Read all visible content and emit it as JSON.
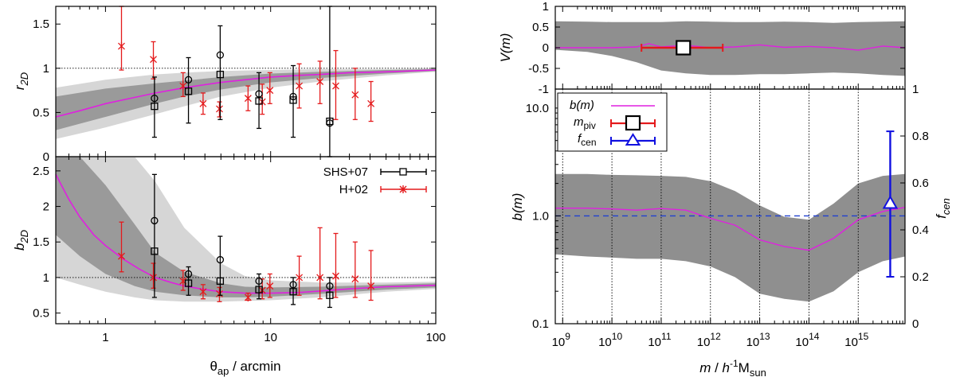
{
  "colors": {
    "band_outer": "#d6d6d6",
    "band_inner": "#9a9a9a",
    "band_dark": "#8f8f8f",
    "model": "#e020e0",
    "h02": "#e41a1c",
    "shs": "#000000",
    "fcen": "#1010e0",
    "dash_blue": "#2040d0"
  },
  "chart_data": [
    {
      "id": "r2d",
      "type": "scatter",
      "ylabel_main": "r",
      "ylabel_sub": "2D",
      "xscale": "log",
      "xlim": [
        0.5,
        100
      ],
      "ylim": [
        0,
        1.7
      ],
      "yticks": [
        "0",
        "0.5",
        "1",
        "1.5"
      ],
      "yticks_values": [
        0,
        0.5,
        1,
        1.5
      ],
      "reference_line": 1,
      "model": {
        "x": [
          0.5,
          0.7,
          1,
          1.5,
          2,
          3,
          5,
          7,
          10,
          15,
          20,
          30,
          50,
          70,
          100
        ],
        "y": [
          0.45,
          0.52,
          0.6,
          0.67,
          0.72,
          0.78,
          0.84,
          0.87,
          0.9,
          0.92,
          0.93,
          0.95,
          0.96,
          0.97,
          0.98
        ]
      },
      "band_inner": {
        "x": [
          0.5,
          1,
          2,
          3,
          5,
          10,
          20,
          50,
          100
        ],
        "lo": [
          0.3,
          0.45,
          0.6,
          0.68,
          0.76,
          0.84,
          0.89,
          0.94,
          0.97
        ],
        "hi": [
          0.68,
          0.77,
          0.83,
          0.86,
          0.9,
          0.94,
          0.96,
          0.98,
          0.99
        ]
      },
      "band_outer": {
        "x": [
          0.5,
          1,
          2,
          3,
          5,
          10,
          20,
          50,
          100
        ],
        "lo": [
          0.2,
          0.33,
          0.48,
          0.57,
          0.68,
          0.78,
          0.85,
          0.92,
          0.96
        ],
        "hi": [
          0.78,
          0.87,
          0.93,
          0.95,
          0.97,
          0.98,
          0.99,
          0.99,
          1.0
        ]
      },
      "h02": {
        "x": [
          1.25,
          1.95,
          2.95,
          3.9,
          4.9,
          7.3,
          8.9,
          9.9,
          14.9,
          19.9,
          24.8,
          32.5,
          40.5
        ],
        "y": [
          1.25,
          1.1,
          0.8,
          0.6,
          0.54,
          0.66,
          0.62,
          0.75,
          0.8,
          0.85,
          0.8,
          0.7,
          0.6
        ],
        "lo": [
          0.98,
          0.88,
          0.68,
          0.48,
          0.45,
          0.52,
          0.48,
          0.6,
          0.55,
          0.6,
          0.42,
          0.42,
          0.4
        ],
        "hi": [
          1.7,
          1.3,
          0.95,
          0.72,
          0.62,
          0.8,
          0.82,
          0.95,
          1.05,
          1.08,
          1.2,
          1.0,
          0.85
        ]
      },
      "shs_sq": {
        "x": [
          1.98,
          3.18,
          4.95,
          8.5,
          13.7,
          22.8
        ],
        "y": [
          0.57,
          0.74,
          0.93,
          0.63,
          0.64,
          0.4
        ],
        "lo": [
          0.22,
          0.38,
          0.42,
          0.32,
          0.22,
          0.0
        ],
        "hi": [
          0.9,
          1.12,
          1.48,
          0.95,
          1.03,
          1.7
        ]
      },
      "shs_circ": {
        "x": [
          1.98,
          3.18,
          4.95,
          8.5,
          13.7,
          22.8
        ],
        "y": [
          0.66,
          0.87,
          1.15,
          0.71,
          0.68,
          0.38
        ]
      }
    },
    {
      "id": "b2d",
      "type": "scatter",
      "xlabel_main": "θ",
      "xlabel_sub": "ap",
      "xlabel_rest": " / arcmin",
      "ylabel_main": "b",
      "ylabel_sub": "2D",
      "xscale": "log",
      "xlim": [
        0.5,
        100
      ],
      "ylim": [
        0.35,
        2.7
      ],
      "xticks": [
        "1",
        "10",
        "100"
      ],
      "xticks_values": [
        1,
        10,
        100
      ],
      "yticks": [
        "0.5",
        "1",
        "1.5",
        "2",
        "2.5"
      ],
      "yticks_values": [
        0.5,
        1,
        1.5,
        2,
        2.5
      ],
      "reference_line": 1,
      "legend": [
        {
          "label": "SHS+07",
          "series": "shs"
        },
        {
          "label": "H+02",
          "series": "h02"
        }
      ],
      "model": {
        "x": [
          0.5,
          0.6,
          0.7,
          0.85,
          1,
          1.3,
          1.6,
          2,
          2.5,
          3,
          4,
          5,
          7,
          10,
          15,
          20,
          30,
          50,
          100
        ],
        "y": [
          2.45,
          2.1,
          1.85,
          1.6,
          1.45,
          1.25,
          1.12,
          1.0,
          0.93,
          0.88,
          0.83,
          0.8,
          0.78,
          0.78,
          0.79,
          0.81,
          0.84,
          0.87,
          0.89
        ]
      },
      "band_inner": {
        "x": [
          0.5,
          0.7,
          1,
          1.5,
          2,
          3,
          5,
          7,
          10,
          20,
          50,
          100
        ],
        "lo": [
          1.6,
          1.3,
          1.05,
          0.88,
          0.8,
          0.75,
          0.72,
          0.72,
          0.73,
          0.77,
          0.83,
          0.86
        ],
        "hi": [
          2.7,
          2.7,
          2.3,
          1.75,
          1.35,
          1.08,
          0.92,
          0.87,
          0.86,
          0.87,
          0.9,
          0.92
        ]
      },
      "band_outer": {
        "x": [
          0.5,
          0.7,
          1,
          1.5,
          2,
          3,
          5,
          7,
          10,
          20,
          50,
          100
        ],
        "lo": [
          1.0,
          0.9,
          0.8,
          0.72,
          0.68,
          0.66,
          0.66,
          0.67,
          0.68,
          0.72,
          0.8,
          0.84
        ],
        "hi": [
          2.7,
          2.7,
          2.7,
          2.7,
          2.35,
          1.7,
          1.2,
          1.02,
          0.96,
          0.93,
          0.93,
          0.94
        ]
      },
      "h02": {
        "x": [
          1.25,
          1.95,
          2.95,
          3.9,
          4.9,
          7.3,
          8.9,
          9.9,
          14.9,
          19.9,
          24.8,
          32.5,
          40.5
        ],
        "y": [
          1.3,
          1.0,
          0.95,
          0.8,
          0.77,
          0.72,
          0.82,
          0.88,
          1.0,
          1.0,
          1.02,
          0.98,
          0.88
        ],
        "lo": [
          1.08,
          0.85,
          0.82,
          0.7,
          0.66,
          0.68,
          0.7,
          0.72,
          0.75,
          0.7,
          0.72,
          0.72,
          0.68
        ],
        "hi": [
          1.78,
          1.2,
          1.1,
          0.9,
          0.86,
          0.78,
          0.98,
          1.05,
          1.3,
          1.7,
          1.62,
          1.5,
          1.38
        ]
      },
      "shs_sq": {
        "x": [
          1.98,
          3.18,
          4.95,
          8.5,
          13.7,
          22.8
        ],
        "y": [
          1.37,
          0.92,
          0.95,
          0.83,
          0.8,
          0.75
        ],
        "lo": [
          0.72,
          0.75,
          0.75,
          0.7,
          0.62,
          0.58
        ],
        "hi": [
          2.45,
          1.15,
          1.58,
          1.05,
          1.0,
          1.0
        ]
      },
      "shs_circ": {
        "x": [
          1.98,
          3.18,
          4.95,
          8.5,
          13.7,
          22.8
        ],
        "y": [
          1.8,
          1.05,
          1.25,
          0.95,
          0.9,
          0.88
        ]
      }
    },
    {
      "id": "vm",
      "type": "line",
      "ylabel": "V(m)",
      "xscale": "log",
      "xlim": [
        8.85,
        15.95
      ],
      "ylim": [
        -1,
        1
      ],
      "yticks": [
        "-1",
        "-0.5",
        "0",
        "0.5",
        "1"
      ],
      "yticks_values": [
        -1,
        -0.5,
        0,
        0.5,
        1
      ],
      "band": {
        "logm": [
          8.85,
          9.5,
          10,
          10.5,
          11,
          11.5,
          12,
          12.5,
          13,
          13.5,
          14,
          14.5,
          15,
          15.5,
          15.95
        ],
        "lo": [
          -0.05,
          -0.1,
          -0.2,
          -0.35,
          -0.55,
          -0.62,
          -0.66,
          -0.66,
          -0.64,
          -0.64,
          -0.62,
          -0.6,
          -0.62,
          -0.66,
          -0.68
        ],
        "hi": [
          0.64,
          0.63,
          0.62,
          0.62,
          0.62,
          0.64,
          0.63,
          0.62,
          0.62,
          0.63,
          0.62,
          0.6,
          0.62,
          0.63,
          0.64
        ]
      },
      "line": {
        "logm": [
          8.85,
          9.5,
          10,
          10.5,
          10.75,
          11,
          11.5,
          12,
          12.5,
          13,
          13.5,
          14,
          14.5,
          15,
          15.5,
          15.95
        ],
        "y": [
          0.0,
          0.0,
          0.0,
          0.02,
          0.1,
          0.02,
          0.06,
          0.0,
          0.02,
          0.07,
          0.01,
          0.03,
          0.0,
          -0.06,
          0.04,
          0.0
        ]
      },
      "pivot": {
        "logm": 11.45,
        "y": 0,
        "lo": 10.6,
        "hi": 12.25
      }
    },
    {
      "id": "bm",
      "type": "line",
      "xlabel_main": "m",
      "xlabel_rest": " / ",
      "xlabel_h": "h",
      "xlabel_sup": "-1",
      "xlabel_M": "M",
      "xlabel_sub": "sun",
      "ylabel": "b(m)",
      "y2label_main": "f",
      "y2label_sub": "cen",
      "xscale": "log",
      "yscale": "log",
      "xlim": [
        8.85,
        15.95
      ],
      "ylim": [
        0.1,
        15
      ],
      "xticks": [
        "9",
        "10",
        "11",
        "12",
        "13",
        "14",
        "15"
      ],
      "xticks_values": [
        9,
        10,
        11,
        12,
        13,
        14,
        15
      ],
      "xtick_base": "10",
      "yticks": [
        "0.1",
        "1.0",
        "10.0"
      ],
      "yticks_values": [
        0.1,
        1,
        10
      ],
      "y2ticks": [
        "0",
        "0.2",
        "0.4",
        "0.6",
        "0.8",
        "1"
      ],
      "y2ticks_values": [
        0,
        0.2,
        0.4,
        0.6,
        0.8,
        1
      ],
      "y2lim": [
        0,
        1
      ],
      "reference_line": 1,
      "legend": [
        {
          "label": "b(m)",
          "series": "b"
        },
        {
          "label_main": "m",
          "label_sub": "piv",
          "series": "pivot"
        },
        {
          "label_main": "f",
          "label_sub": "cen",
          "series": "fcen"
        }
      ],
      "band": {
        "logm": [
          8.85,
          9.5,
          10,
          10.5,
          11,
          11.5,
          12,
          12.5,
          13,
          13.5,
          14,
          14.5,
          15,
          15.5,
          15.95
        ],
        "lo": [
          0.44,
          0.42,
          0.41,
          0.4,
          0.4,
          0.38,
          0.34,
          0.27,
          0.19,
          0.17,
          0.16,
          0.2,
          0.3,
          0.38,
          0.42
        ],
        "hi": [
          2.45,
          2.45,
          2.4,
          2.38,
          2.35,
          2.3,
          2.1,
          1.7,
          1.25,
          0.98,
          0.92,
          1.3,
          2.0,
          2.35,
          2.45
        ]
      },
      "line": {
        "logm": [
          8.85,
          9.5,
          10,
          10.5,
          11,
          11.5,
          12,
          12.5,
          13,
          13.5,
          14,
          14.5,
          15,
          15.5,
          15.95
        ],
        "y": [
          1.18,
          1.18,
          1.16,
          1.13,
          1.17,
          1.13,
          0.95,
          0.82,
          0.6,
          0.52,
          0.48,
          0.62,
          0.92,
          1.1,
          1.2
        ]
      },
      "fcen": {
        "logm": 15.65,
        "value": 0.51,
        "lo": 0.2,
        "hi": 0.82
      }
    }
  ]
}
